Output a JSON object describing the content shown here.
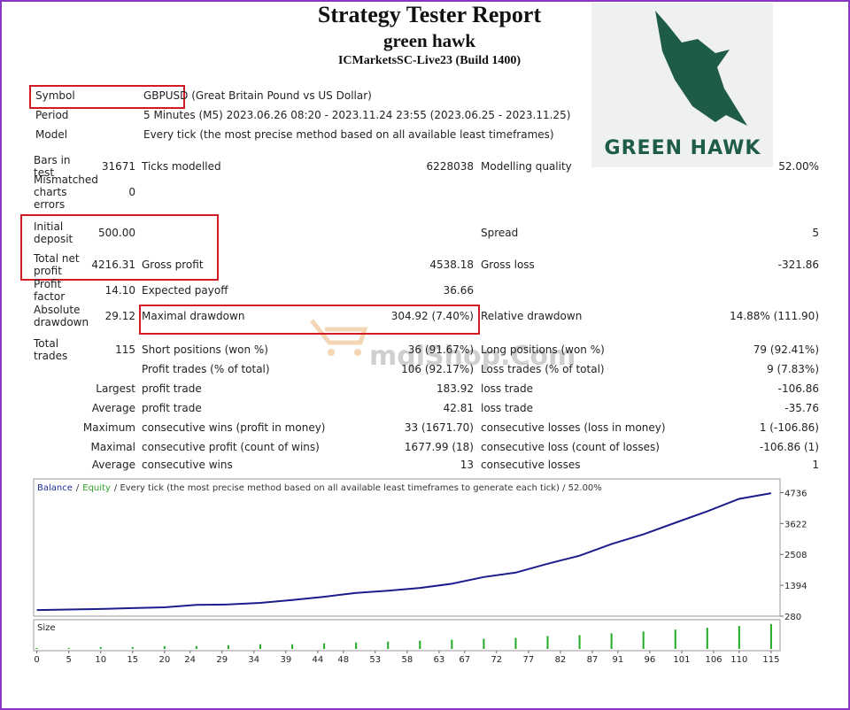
{
  "header": {
    "title": "Strategy Tester Report",
    "subtitle": "green hawk",
    "server": "ICMarketsSC-Live23 (Build 1400)"
  },
  "logo": {
    "text": "GREEN HAWK"
  },
  "watermark": "mqlShop.Com",
  "info": [
    [
      "Symbol",
      "GBPUSD (Great Britain Pound vs US Dollar)"
    ],
    [
      "Period",
      "5 Minutes (M5) 2023.06.26 08:20 - 2023.11.24 23:55 (2023.06.25 - 2023.11.25)"
    ],
    [
      "Model",
      "Every tick (the most precise method based on all available least timeframes)"
    ]
  ],
  "stats": {
    "rows": [
      {
        "c1": [
          "Bars in test",
          "31671"
        ],
        "c2": [
          "Ticks modelled",
          "6228038"
        ],
        "c3": [
          "Modelling quality",
          "52.00%"
        ]
      },
      {
        "c1": [
          "Mismatched charts errors",
          "0"
        ]
      },
      {
        "c1": [
          "Initial deposit",
          "500.00"
        ],
        "c3": [
          "Spread",
          "5"
        ]
      },
      {
        "c1": [
          "Total net profit",
          "4216.31"
        ],
        "c2": [
          "Gross profit",
          "4538.18"
        ],
        "c3": [
          "Gross loss",
          "-321.86"
        ]
      },
      {
        "c1": [
          "Profit factor",
          "14.10"
        ],
        "c2": [
          "Expected payoff",
          "36.66"
        ]
      },
      {
        "c1": [
          "Absolute drawdown",
          "29.12"
        ],
        "c2": [
          "Maximal drawdown",
          "304.92 (7.40%)"
        ],
        "c3": [
          "Relative drawdown",
          "14.88% (111.90)"
        ]
      },
      {
        "c1": [
          "Total trades",
          "115"
        ],
        "c2": [
          "Short positions (won %)",
          "36 (91.67%)"
        ],
        "c3": [
          "Long positions (won %)",
          "79 (92.41%)"
        ]
      },
      {
        "c2": [
          "Profit trades (% of total)",
          "106 (92.17%)"
        ],
        "c3": [
          "Loss trades (% of total)",
          "9 (7.83%)"
        ]
      },
      {
        "c1": [
          "Largest"
        ],
        "c2": [
          "profit trade",
          "183.92"
        ],
        "c3": [
          "loss trade",
          "-106.86"
        ]
      },
      {
        "c1": [
          "Average"
        ],
        "c2": [
          "profit trade",
          "42.81"
        ],
        "c3": [
          "loss trade",
          "-35.76"
        ]
      },
      {
        "c1": [
          "Maximum"
        ],
        "c2": [
          "consecutive wins (profit in money)",
          "33 (1671.70)"
        ],
        "c3": [
          "consecutive losses (loss in money)",
          "1 (-106.86)"
        ]
      },
      {
        "c1": [
          "Maximal"
        ],
        "c2": [
          "consecutive profit (count of wins)",
          "1677.99 (18)"
        ],
        "c3": [
          "consecutive loss (count of losses)",
          "-106.86 (1)"
        ]
      },
      {
        "c1": [
          "Average"
        ],
        "c2": [
          "consecutive wins",
          "13"
        ],
        "c3": [
          "consecutive losses",
          "1"
        ]
      }
    ]
  },
  "chart": {
    "type": "line",
    "caption": [
      {
        "text": "Balance",
        "color": "#1f2f9a"
      },
      {
        "text": "/",
        "color": "#333333"
      },
      {
        "text": "Equity",
        "color": "#2e9e2e"
      },
      {
        "text": "/ Every tick (the most precise method based on all available least timeframes to generate each tick) / 52.00%",
        "color": "#333333"
      }
    ],
    "x": [
      0,
      5,
      10,
      15,
      20,
      25,
      30,
      35,
      40,
      45,
      50,
      55,
      60,
      65,
      70,
      75,
      80,
      85,
      90,
      95,
      100,
      105,
      110,
      115
    ],
    "balance": [
      500,
      520,
      540,
      570,
      600,
      690,
      700,
      760,
      860,
      980,
      1120,
      1200,
      1300,
      1450,
      1690,
      1850,
      2170,
      2460,
      2880,
      3230,
      3650,
      4060,
      4510,
      4716
    ],
    "balance_color": "#1c1c8c",
    "size_label": "Size",
    "sizes": [
      0.01,
      0.01,
      0.02,
      0.02,
      0.03,
      0.03,
      0.04,
      0.05,
      0.05,
      0.06,
      0.07,
      0.08,
      0.09,
      0.1,
      0.11,
      0.12,
      0.14,
      0.15,
      0.17,
      0.19,
      0.21,
      0.23,
      0.25,
      0.27
    ],
    "size_color": "#22aa22",
    "xlim": [
      -0.5,
      116.4
    ],
    "ylim": [
      280,
      5230
    ],
    "xticks": [
      0,
      5,
      10,
      15,
      20,
      24,
      29,
      34,
      39,
      44,
      48,
      53,
      58,
      63,
      67,
      72,
      77,
      82,
      87,
      91,
      96,
      101,
      106,
      110,
      115
    ],
    "yticks": [
      280,
      1394,
      2508,
      3622,
      4736
    ]
  }
}
